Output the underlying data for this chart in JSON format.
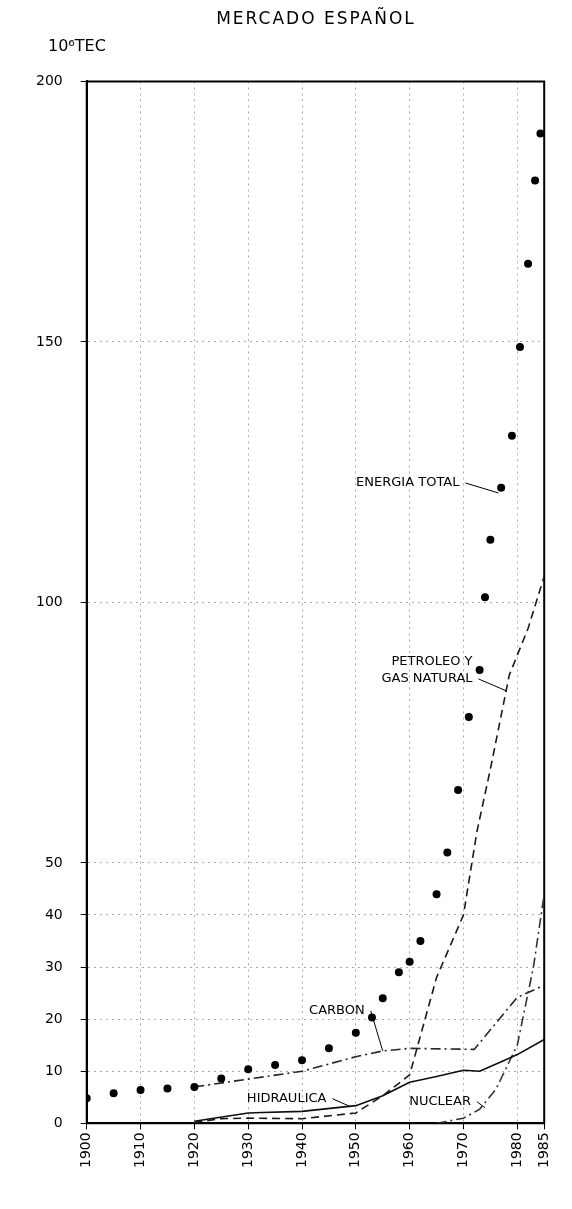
{
  "chart_data": {
    "type": "line",
    "title": "MERCADO ESPAÑOL",
    "ylabel": "10⁶TEC",
    "xlim": [
      1900,
      1985
    ],
    "xticks": [
      1900,
      1910,
      1920,
      1930,
      1940,
      1950,
      1960,
      1970,
      1980,
      1985
    ],
    "ylim": [
      0,
      200
    ],
    "yticks": [
      0,
      10,
      20,
      30,
      40,
      50,
      100,
      150,
      200
    ],
    "grid": true,
    "series": [
      {
        "type": "scatter",
        "color": "#000000",
        "marker": "circle",
        "x": [
          1900,
          1905,
          1910,
          1915,
          1920,
          1925,
          1930,
          1935,
          1940,
          1945,
          1950,
          1953,
          1955,
          1958,
          1960,
          1962,
          1965,
          1967,
          1969,
          1971,
          1973,
          1974,
          1975,
          1977,
          1979,
          1980.5,
          1982,
          1983.3,
          1984.3
        ],
        "values": [
          4.8,
          5.8,
          6.4,
          6.7,
          7,
          8.6,
          10.4,
          11.2,
          12.1,
          14.4,
          17.4,
          20.3,
          24,
          29,
          31,
          35,
          44,
          52,
          64,
          78,
          87,
          101,
          112,
          122,
          132,
          149,
          165,
          181,
          190
        ]
      },
      {
        "color": "#1a1a1a",
        "line_style": "dashed",
        "x": [
          1920,
          1925,
          1930,
          1940,
          1950,
          1955,
          1960,
          1965,
          1970,
          1972.5,
          1975,
          1978.5,
          1982,
          1985
        ],
        "values": [
          0.2,
          0.9,
          1,
          0.9,
          2,
          5.3,
          9.3,
          28,
          40,
          56,
          68,
          86,
          95,
          105
        ]
      },
      {
        "color": "#262626",
        "line_style": "dashdot",
        "x": [
          1920,
          1930,
          1940,
          1950,
          1955,
          1960,
          1972,
          1980,
          1985
        ],
        "values": [
          7,
          8.5,
          10,
          12.8,
          13.9,
          14.4,
          14.2,
          24.2,
          26.5
        ]
      },
      {
        "color": "#0d0d0d",
        "line_style": "solid",
        "x": [
          1920,
          1930,
          1940,
          1950,
          1955,
          1960,
          1965,
          1970,
          1973,
          1980,
          1985
        ],
        "values": [
          0.4,
          2,
          2.3,
          3.4,
          5.3,
          7.9,
          9,
          10.2,
          10,
          13.2,
          16.1
        ]
      },
      {
        "color": "#333333",
        "line_style": "dashdot",
        "x": [
          1965,
          1970,
          1973,
          1976,
          1980,
          1983,
          1985
        ],
        "values": [
          0,
          1,
          2.7,
          6.5,
          15,
          30,
          44
        ]
      }
    ],
    "annotations": [
      {
        "text": "ENERGIA TOTAL",
        "x": 1976.5,
        "y": 121
      },
      {
        "text": "PETROLEO Y\nGAS NATURAL",
        "x": 1978,
        "y": 83
      },
      {
        "text": "CARBON",
        "x": 1955,
        "y": 13.9
      },
      {
        "text": "HIDRAULICA",
        "x": 1949,
        "y": 3.2
      },
      {
        "text": "NUCLEAR",
        "x": 1974,
        "y": 3
      }
    ]
  }
}
